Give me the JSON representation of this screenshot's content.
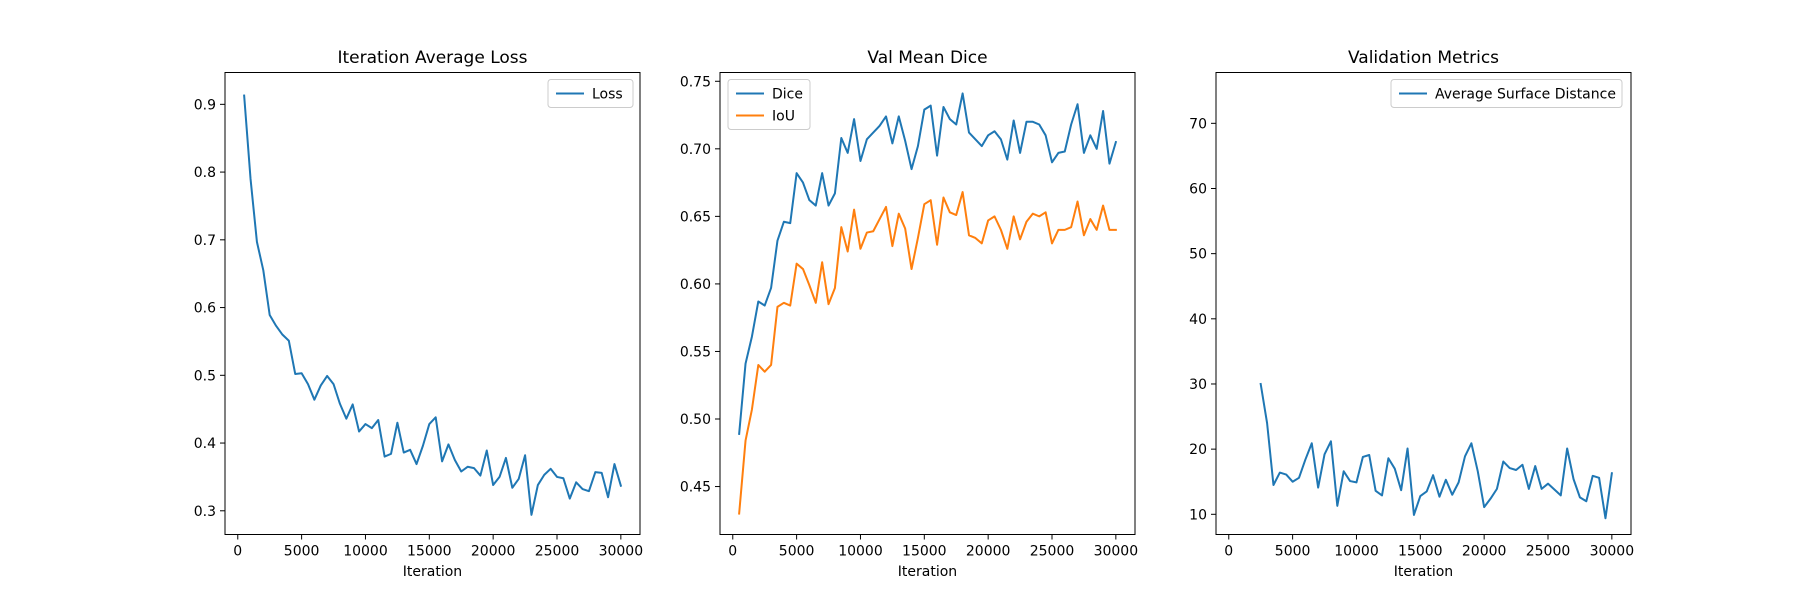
{
  "chart_data": [
    {
      "type": "line",
      "title": "Iteration Average Loss",
      "xlabel": "Iteration",
      "ylabel": "",
      "xlim": [
        -1000,
        31500
      ],
      "ylim": [
        0.265,
        0.947
      ],
      "xticks": [
        0,
        5000,
        10000,
        15000,
        20000,
        25000,
        30000
      ],
      "yticks": [
        0.3,
        0.4,
        0.5,
        0.6,
        0.7,
        0.8,
        0.9
      ],
      "grid": false,
      "legend_position": "upper right",
      "series": [
        {
          "name": "Loss",
          "color": "#1f77b4",
          "x": [
            500,
            1000,
            1500,
            2000,
            2500,
            3000,
            3500,
            4000,
            4500,
            5000,
            5500,
            6000,
            6500,
            7000,
            7500,
            8000,
            8500,
            9000,
            9500,
            10000,
            10500,
            11000,
            11500,
            12000,
            12500,
            13000,
            13500,
            14000,
            14500,
            15000,
            15500,
            16000,
            16500,
            17000,
            17500,
            18000,
            18500,
            19000,
            19500,
            20000,
            20500,
            21000,
            21500,
            22000,
            22500,
            23000,
            23500,
            24000,
            24500,
            25000,
            25500,
            26000,
            26500,
            27000,
            27500,
            28000,
            28500,
            29000,
            29500,
            30000
          ],
          "values": [
            0.913,
            0.79,
            0.697,
            0.655,
            0.589,
            0.573,
            0.56,
            0.551,
            0.502,
            0.503,
            0.487,
            0.464,
            0.485,
            0.499,
            0.487,
            0.458,
            0.436,
            0.457,
            0.417,
            0.428,
            0.422,
            0.434,
            0.38,
            0.384,
            0.43,
            0.386,
            0.39,
            0.369,
            0.396,
            0.428,
            0.438,
            0.373,
            0.398,
            0.375,
            0.358,
            0.365,
            0.363,
            0.352,
            0.389,
            0.338,
            0.35,
            0.378,
            0.334,
            0.347,
            0.382,
            0.294,
            0.338,
            0.353,
            0.362,
            0.35,
            0.348,
            0.318,
            0.342,
            0.332,
            0.329,
            0.357,
            0.356,
            0.32,
            0.369,
            0.337
          ]
        }
      ]
    },
    {
      "type": "line",
      "title": "Val Mean Dice",
      "xlabel": "Iteration",
      "ylabel": "",
      "xlim": [
        -1000,
        31500
      ],
      "ylim": [
        0.4145,
        0.7565
      ],
      "xticks": [
        0,
        5000,
        10000,
        15000,
        20000,
        25000,
        30000
      ],
      "yticks": [
        0.45,
        0.5,
        0.55,
        0.6,
        0.65,
        0.7,
        0.75
      ],
      "grid": false,
      "legend_position": "upper left",
      "series": [
        {
          "name": "Dice",
          "color": "#1f77b4",
          "x": [
            500,
            1000,
            1500,
            2000,
            2500,
            3000,
            3500,
            4000,
            4500,
            5000,
            5500,
            6000,
            6500,
            7000,
            7500,
            8000,
            8500,
            9000,
            9500,
            10000,
            10500,
            11000,
            11500,
            12000,
            12500,
            13000,
            13500,
            14000,
            14500,
            15000,
            15500,
            16000,
            16500,
            17000,
            17500,
            18000,
            18500,
            19000,
            19500,
            20000,
            20500,
            21000,
            21500,
            22000,
            22500,
            23000,
            23500,
            24000,
            24500,
            25000,
            25500,
            26000,
            26500,
            27000,
            27500,
            28000,
            28500,
            29000,
            29500,
            30000
          ],
          "values": [
            0.489,
            0.541,
            0.561,
            0.587,
            0.584,
            0.597,
            0.632,
            0.646,
            0.645,
            0.682,
            0.675,
            0.662,
            0.658,
            0.682,
            0.658,
            0.667,
            0.708,
            0.697,
            0.722,
            0.691,
            0.707,
            0.712,
            0.717,
            0.724,
            0.704,
            0.724,
            0.706,
            0.685,
            0.702,
            0.729,
            0.732,
            0.695,
            0.731,
            0.722,
            0.718,
            0.741,
            0.712,
            0.707,
            0.702,
            0.71,
            0.713,
            0.707,
            0.692,
            0.721,
            0.697,
            0.72,
            0.72,
            0.718,
            0.71,
            0.69,
            0.697,
            0.698,
            0.718,
            0.733,
            0.697,
            0.71,
            0.7,
            0.728,
            0.689,
            0.705
          ]
        },
        {
          "name": "IoU",
          "color": "#ff7f0e",
          "x": [
            500,
            1000,
            1500,
            2000,
            2500,
            3000,
            3500,
            4000,
            4500,
            5000,
            5500,
            6000,
            6500,
            7000,
            7500,
            8000,
            8500,
            9000,
            9500,
            10000,
            10500,
            11000,
            11500,
            12000,
            12500,
            13000,
            13500,
            14000,
            14500,
            15000,
            15500,
            16000,
            16500,
            17000,
            17500,
            18000,
            18500,
            19000,
            19500,
            20000,
            20500,
            21000,
            21500,
            22000,
            22500,
            23000,
            23500,
            24000,
            24500,
            25000,
            25500,
            26000,
            26500,
            27000,
            27500,
            28000,
            28500,
            29000,
            29500,
            30000
          ],
          "values": [
            0.43,
            0.484,
            0.507,
            0.54,
            0.535,
            0.54,
            0.583,
            0.586,
            0.584,
            0.615,
            0.611,
            0.599,
            0.586,
            0.616,
            0.585,
            0.597,
            0.642,
            0.624,
            0.655,
            0.626,
            0.638,
            0.639,
            0.648,
            0.657,
            0.628,
            0.652,
            0.641,
            0.611,
            0.634,
            0.659,
            0.662,
            0.629,
            0.664,
            0.653,
            0.651,
            0.668,
            0.636,
            0.634,
            0.63,
            0.647,
            0.65,
            0.64,
            0.626,
            0.65,
            0.633,
            0.646,
            0.652,
            0.65,
            0.653,
            0.63,
            0.64,
            0.64,
            0.642,
            0.661,
            0.636,
            0.648,
            0.64,
            0.658,
            0.64,
            0.64
          ]
        }
      ]
    },
    {
      "type": "line",
      "title": "Validation Metrics",
      "xlabel": "Iteration",
      "ylabel": "",
      "xlim": [
        -1000,
        31500
      ],
      "ylim": [
        6.9,
        77.8
      ],
      "xticks": [
        0,
        5000,
        10000,
        15000,
        20000,
        25000,
        30000
      ],
      "yticks": [
        10,
        20,
        30,
        40,
        50,
        60,
        70
      ],
      "grid": false,
      "legend_position": "upper right",
      "series": [
        {
          "name": "Average Surface Distance",
          "color": "#1f77b4",
          "x": [
            2500,
            3000,
            3500,
            4000,
            4500,
            5000,
            5500,
            6000,
            6500,
            7000,
            7500,
            8000,
            8500,
            9000,
            9500,
            10000,
            10500,
            11000,
            11500,
            12000,
            12500,
            13000,
            13500,
            14000,
            14500,
            15000,
            15500,
            16000,
            16500,
            17000,
            17500,
            18000,
            18500,
            19000,
            19500,
            20000,
            20500,
            21000,
            21500,
            22000,
            22500,
            23000,
            23500,
            24000,
            24500,
            25000,
            25500,
            26000,
            26500,
            27000,
            27500,
            28000,
            28500,
            29000,
            29500,
            30000
          ],
          "values": [
            30,
            24,
            14.5,
            16.4,
            16.1,
            15,
            15.6,
            18.4,
            20.9,
            14.1,
            19.2,
            21.2,
            11.3,
            16.6,
            15.1,
            14.9,
            18.8,
            19.1,
            13.6,
            12.9,
            18.6,
            17,
            13.7,
            20.1,
            9.9,
            12.8,
            13.5,
            16,
            12.7,
            15.3,
            13,
            14.9,
            18.9,
            20.9,
            16.6,
            11.1,
            12.4,
            13.9,
            18.1,
            17.1,
            16.8,
            17.6,
            13.9,
            17.4,
            13.9,
            14.7,
            13.8,
            12.9,
            20.1,
            15.4,
            12.6,
            12,
            15.9,
            15.6,
            9.4,
            16.3
          ]
        }
      ]
    }
  ]
}
